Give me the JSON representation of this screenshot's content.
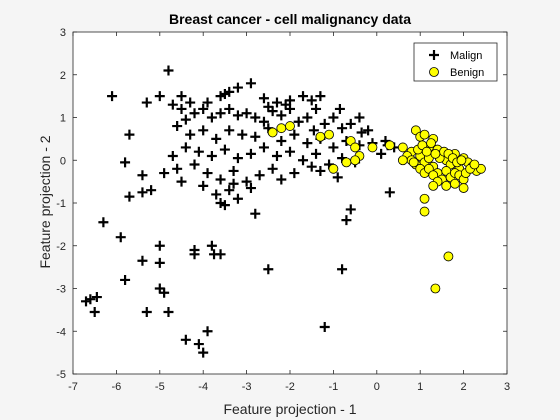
{
  "chart_data": {
    "type": "scatter",
    "title": "Breast cancer - cell malignancy data",
    "xlabel": "Feature projection - 1",
    "ylabel": "Feature projection - 2",
    "xlim": [
      -7,
      3
    ],
    "ylim": [
      -5,
      3
    ],
    "xticks": [
      -7,
      -6,
      -5,
      -4,
      -3,
      -2,
      -1,
      0,
      1,
      2,
      3
    ],
    "yticks": [
      -5,
      -4,
      -3,
      -2,
      -1,
      0,
      1,
      2,
      3
    ],
    "grid": false,
    "legend_position": "top-right",
    "colors": {
      "malign": "#000000",
      "benign": "#ffff00",
      "benign_edge": "#000000"
    },
    "series": [
      {
        "name": "Malign",
        "marker": "plus",
        "points": [
          [
            -6.1,
            1.5
          ],
          [
            -5.3,
            1.35
          ],
          [
            -5.0,
            1.5
          ],
          [
            -4.8,
            2.1
          ],
          [
            -4.5,
            1.5
          ],
          [
            -4.3,
            1.35
          ],
          [
            -3.6,
            1.5
          ],
          [
            -3.5,
            1.55
          ],
          [
            -3.4,
            1.6
          ],
          [
            -3.2,
            1.7
          ],
          [
            -2.9,
            1.8
          ],
          [
            -2.6,
            1.45
          ],
          [
            -2.3,
            1.35
          ],
          [
            -2.0,
            1.4
          ],
          [
            -1.7,
            1.5
          ],
          [
            -1.5,
            1.4
          ],
          [
            -1.3,
            1.5
          ],
          [
            -5.7,
            0.6
          ],
          [
            -5.8,
            -0.05
          ],
          [
            -5.4,
            -0.35
          ],
          [
            -5.7,
            -0.85
          ],
          [
            -5.2,
            -0.7
          ],
          [
            -5.4,
            -0.75
          ],
          [
            -4.9,
            -0.3
          ],
          [
            -4.6,
            -0.2
          ],
          [
            -6.3,
            -1.45
          ],
          [
            -5.9,
            -1.8
          ],
          [
            -5.4,
            -2.35
          ],
          [
            -5.8,
            -2.8
          ],
          [
            -6.7,
            -3.3
          ],
          [
            -6.6,
            -3.25
          ],
          [
            -6.5,
            -3.55
          ],
          [
            -6.45,
            -3.2
          ],
          [
            -5.0,
            -2.0
          ],
          [
            -5.0,
            -2.4
          ],
          [
            -5.0,
            -3.0
          ],
          [
            -5.3,
            -3.55
          ],
          [
            -4.8,
            -3.55
          ],
          [
            -4.9,
            -3.1
          ],
          [
            -4.2,
            -2.1
          ],
          [
            -4.2,
            -2.2
          ],
          [
            -3.8,
            -2.0
          ],
          [
            -3.75,
            -2.2
          ],
          [
            -3.6,
            -2.2
          ],
          [
            -3.9,
            -4.0
          ],
          [
            -4.0,
            -4.5
          ],
          [
            -4.1,
            -4.3
          ],
          [
            -4.4,
            -4.2
          ],
          [
            -2.5,
            -2.55
          ],
          [
            -1.2,
            -3.9
          ],
          [
            -0.8,
            -2.55
          ],
          [
            -0.7,
            -1.4
          ],
          [
            -0.6,
            -1.15
          ],
          [
            0.3,
            -0.75
          ],
          [
            -2.8,
            -1.25
          ],
          [
            -4.5,
            1.2
          ],
          [
            -4.4,
            0.95
          ],
          [
            -4.2,
            1.1
          ],
          [
            -4.0,
            1.2
          ],
          [
            -3.8,
            1.0
          ],
          [
            -3.6,
            1.1
          ],
          [
            -3.4,
            1.2
          ],
          [
            -3.2,
            1.05
          ],
          [
            -3.0,
            1.1
          ],
          [
            -2.8,
            1.0
          ],
          [
            -2.6,
            0.9
          ],
          [
            -2.4,
            1.15
          ],
          [
            -2.2,
            1.05
          ],
          [
            -2.0,
            1.2
          ],
          [
            -1.8,
            0.9
          ],
          [
            -1.6,
            1.0
          ],
          [
            -1.4,
            1.2
          ],
          [
            -1.2,
            0.85
          ],
          [
            -1.0,
            1.0
          ],
          [
            -0.8,
            0.75
          ],
          [
            -0.6,
            0.85
          ],
          [
            -0.4,
            1.0
          ],
          [
            -0.2,
            0.7
          ],
          [
            -4.6,
            0.8
          ],
          [
            -4.3,
            0.6
          ],
          [
            -4.0,
            0.7
          ],
          [
            -3.7,
            0.5
          ],
          [
            -3.4,
            0.7
          ],
          [
            -3.1,
            0.6
          ],
          [
            -2.8,
            0.55
          ],
          [
            -2.5,
            0.75
          ],
          [
            -2.2,
            0.45
          ],
          [
            -1.9,
            0.6
          ],
          [
            -1.6,
            0.4
          ],
          [
            -1.3,
            0.5
          ],
          [
            -1.0,
            0.3
          ],
          [
            -0.7,
            0.45
          ],
          [
            -0.4,
            0.35
          ],
          [
            -0.1,
            0.4
          ],
          [
            0.2,
            0.45
          ],
          [
            0.4,
            0.3
          ],
          [
            -4.4,
            0.3
          ],
          [
            -4.1,
            0.2
          ],
          [
            -3.8,
            0.1
          ],
          [
            -3.5,
            0.25
          ],
          [
            -3.2,
            0.05
          ],
          [
            -2.9,
            0.15
          ],
          [
            -2.6,
            0.3
          ],
          [
            -2.3,
            0.1
          ],
          [
            -2.0,
            0.2
          ],
          [
            -1.7,
            0.0
          ],
          [
            -1.4,
            0.15
          ],
          [
            -1.1,
            -0.1
          ],
          [
            -0.8,
            0.05
          ],
          [
            -0.5,
            -0.05
          ],
          [
            0.1,
            0.15
          ],
          [
            -4.2,
            -0.1
          ],
          [
            -3.9,
            -0.3
          ],
          [
            -3.6,
            -0.45
          ],
          [
            -3.3,
            -0.25
          ],
          [
            -3.0,
            -0.5
          ],
          [
            -2.7,
            -0.35
          ],
          [
            -2.4,
            -0.2
          ],
          [
            -1.9,
            -0.3
          ],
          [
            -1.3,
            -0.25
          ],
          [
            -0.9,
            -0.4
          ],
          [
            -4.0,
            -0.6
          ],
          [
            -3.7,
            -0.8
          ],
          [
            -3.4,
            -0.7
          ],
          [
            -3.2,
            -0.9
          ],
          [
            -2.9,
            -0.65
          ],
          [
            -3.6,
            -1.0
          ],
          [
            -3.5,
            -1.05
          ],
          [
            -3.3,
            -0.55
          ],
          [
            -4.5,
            -0.5
          ],
          [
            -4.7,
            0.1
          ],
          [
            -3.9,
            1.35
          ],
          [
            -4.7,
            1.3
          ],
          [
            -2.1,
            1.3
          ],
          [
            -2.5,
            1.25
          ],
          [
            -1.45,
            0.7
          ],
          [
            -0.85,
            1.2
          ],
          [
            -0.35,
            0.65
          ],
          [
            0.25,
            0.35
          ],
          [
            -1.5,
            -0.15
          ],
          [
            -2.2,
            -0.45
          ]
        ]
      },
      {
        "name": "Benign",
        "marker": "circle",
        "points": [
          [
            -2.2,
            0.75
          ],
          [
            -2.0,
            0.8
          ],
          [
            -2.4,
            0.65
          ],
          [
            -1.3,
            0.55
          ],
          [
            -1.1,
            0.6
          ],
          [
            -0.6,
            0.45
          ],
          [
            -0.5,
            0.3
          ],
          [
            -0.4,
            0.1
          ],
          [
            -0.7,
            -0.05
          ],
          [
            -1.0,
            -0.2
          ],
          [
            -0.5,
            0.0
          ],
          [
            -0.1,
            0.3
          ],
          [
            0.3,
            0.35
          ],
          [
            0.6,
            0.3
          ],
          [
            0.9,
            0.7
          ],
          [
            0.8,
            0.2
          ],
          [
            1.0,
            0.55
          ],
          [
            1.1,
            0.6
          ],
          [
            1.2,
            0.3
          ],
          [
            1.3,
            0.5
          ],
          [
            1.4,
            0.25
          ],
          [
            1.5,
            0.1
          ],
          [
            1.6,
            0.0
          ],
          [
            1.7,
            -0.1
          ],
          [
            1.8,
            0.15
          ],
          [
            1.9,
            -0.2
          ],
          [
            2.0,
            0.05
          ],
          [
            2.1,
            -0.05
          ],
          [
            2.2,
            -0.15
          ],
          [
            2.3,
            -0.25
          ],
          [
            2.4,
            -0.2
          ],
          [
            1.0,
            0.1
          ],
          [
            1.1,
            -0.05
          ],
          [
            1.2,
            0.05
          ],
          [
            1.3,
            -0.15
          ],
          [
            1.4,
            -0.3
          ],
          [
            1.5,
            -0.45
          ],
          [
            1.6,
            -0.25
          ],
          [
            1.7,
            -0.4
          ],
          [
            1.8,
            -0.3
          ],
          [
            1.9,
            -0.35
          ],
          [
            2.0,
            -0.45
          ],
          [
            0.7,
            0.1
          ],
          [
            0.9,
            -0.1
          ],
          [
            1.0,
            -0.2
          ],
          [
            1.1,
            -0.3
          ],
          [
            1.2,
            -0.2
          ],
          [
            1.3,
            -0.35
          ],
          [
            1.4,
            -0.5
          ],
          [
            0.8,
            0.0
          ],
          [
            0.95,
            0.25
          ],
          [
            1.05,
            0.35
          ],
          [
            1.25,
            0.4
          ],
          [
            1.45,
            0.05
          ],
          [
            1.55,
            0.2
          ],
          [
            1.65,
            0.15
          ],
          [
            1.75,
            0.05
          ],
          [
            1.85,
            -0.05
          ],
          [
            1.95,
            0.0
          ],
          [
            2.05,
            -0.3
          ],
          [
            2.15,
            -0.2
          ],
          [
            2.25,
            -0.1
          ],
          [
            1.35,
            0.15
          ],
          [
            1.15,
            0.2
          ],
          [
            0.85,
            -0.05
          ],
          [
            0.6,
            0.0
          ],
          [
            1.6,
            -0.6
          ],
          [
            1.8,
            -0.55
          ],
          [
            2.0,
            -0.65
          ],
          [
            1.3,
            -0.6
          ],
          [
            1.1,
            -0.9
          ],
          [
            1.1,
            -1.2
          ],
          [
            1.65,
            -2.25
          ],
          [
            1.35,
            -3.0
          ]
        ]
      }
    ]
  }
}
